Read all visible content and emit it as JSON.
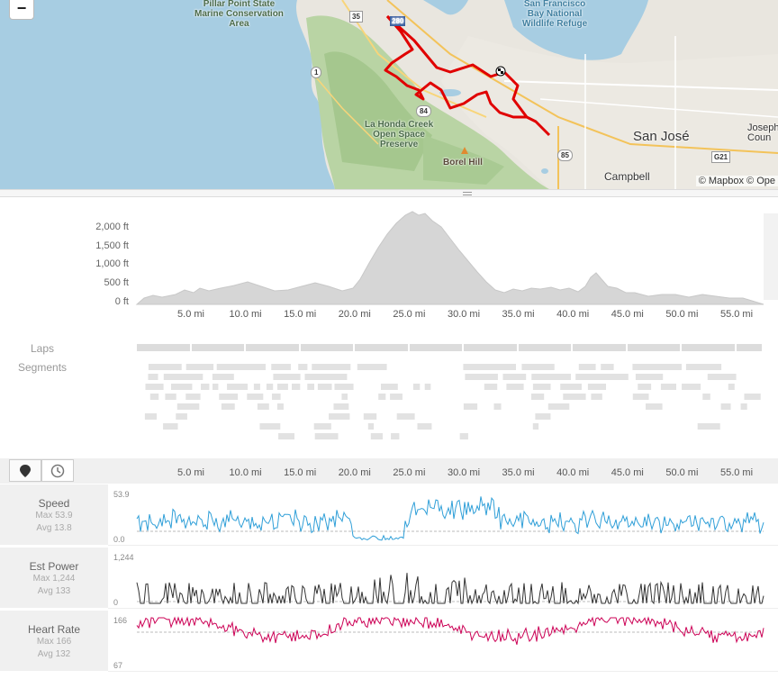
{
  "map": {
    "zoom_out_label": "−",
    "labels": {
      "pillar_point": "Pillar Point State\nMarine Conservation\nArea",
      "sf_bay": "San Francisco\nBay National\nWildlife Refuge",
      "la_honda": "La Honda Creek\nOpen Space\nPreserve",
      "borel_hill": "Borel Hill",
      "san_jose": "San José",
      "campbell": "Campbell",
      "joseph": "Joseph\nCoun"
    },
    "shields": [
      "35",
      "280",
      "1",
      "84",
      "85",
      "G21"
    ],
    "attribution": "© Mapbox © Ope",
    "route_color": "#e00000"
  },
  "elevation": {
    "y_ticks": [
      "2,000 ft",
      "1,500 ft",
      "1,000 ft",
      "500 ft",
      "0 ft"
    ],
    "x_ticks": [
      "5.0 mi",
      "10.0 mi",
      "15.0 mi",
      "20.0 mi",
      "25.0 mi",
      "30.0 mi",
      "35.0 mi",
      "40.0 mi",
      "45.0 mi",
      "50.0 mi",
      "55.0 mi"
    ],
    "fill_color": "#d6d6d6"
  },
  "laps_label": "Laps",
  "segments_label": "Segments",
  "toolbar": {
    "x_ticks": [
      "5.0 mi",
      "10.0 mi",
      "15.0 mi",
      "20.0 mi",
      "25.0 mi",
      "30.0 mi",
      "35.0 mi",
      "40.0 mi",
      "45.0 mi",
      "50.0 mi",
      "55.0 mi"
    ],
    "map_marker_icon": "map-marker-icon",
    "clock_icon": "clock-icon"
  },
  "streams": [
    {
      "name": "Speed",
      "max": "Max 53.9",
      "avg": "Avg 13.8",
      "axis_top": "53.9",
      "axis_bottom": "0.0",
      "color": "#2f9fd8"
    },
    {
      "name": "Est Power",
      "max": "Max 1,244",
      "avg": "Avg 133",
      "axis_top": "1,244",
      "axis_bottom": "0",
      "color": "#333333"
    },
    {
      "name": "Heart Rate",
      "max": "Max 166",
      "avg": "Avg 132",
      "axis_top": "166",
      "axis_bottom": "67",
      "color": "#cc0055"
    }
  ]
}
